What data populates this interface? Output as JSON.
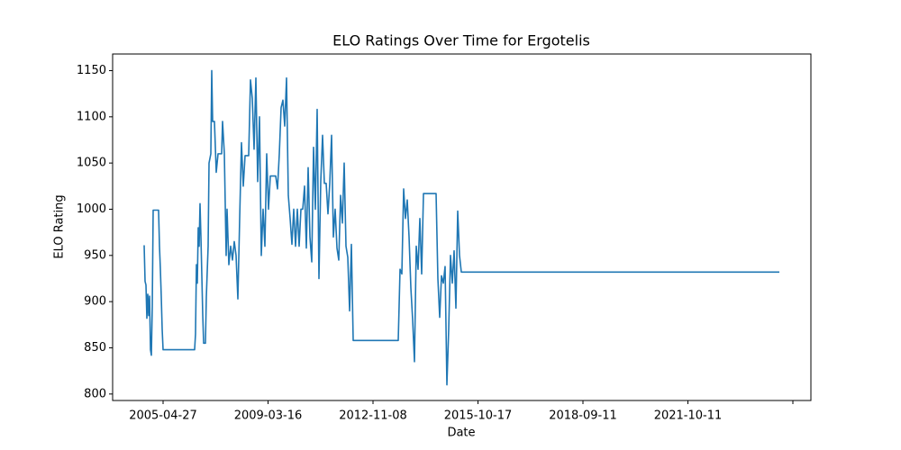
{
  "chart_data": {
    "type": "line",
    "title": "ELO Ratings Over Time for Ergotelis",
    "xlabel": "Date",
    "ylabel": "ELO Rating",
    "xlim": [
      -35,
      740
    ],
    "ylim": [
      793,
      1168
    ],
    "xticks": [
      {
        "value": 21,
        "label": "2005-04-27"
      },
      {
        "value": 137.5,
        "label": "2009-03-16"
      },
      {
        "value": 254,
        "label": "2012-11-08"
      },
      {
        "value": 370.5,
        "label": "2015-10-17"
      },
      {
        "value": 487,
        "label": "2018-09-11"
      },
      {
        "value": 603.5,
        "label": "2021-10-11"
      },
      {
        "value": 720,
        "label": null
      }
    ],
    "yticks": [
      800,
      850,
      900,
      950,
      1000,
      1050,
      1100,
      1150
    ],
    "series": [
      {
        "name": "ELO Rating",
        "color": "#1f77b4",
        "x": [
          0,
          1,
          2,
          3,
          4,
          5,
          6,
          7,
          8,
          9,
          10,
          16,
          17,
          18,
          19,
          20,
          21,
          56,
          57,
          58,
          59,
          60,
          61,
          62,
          63,
          65,
          66,
          68,
          69,
          71,
          72,
          74,
          75,
          76,
          78,
          80,
          82,
          86,
          87,
          89,
          91,
          92,
          94,
          96,
          98,
          100,
          102,
          104,
          106,
          108,
          110,
          112,
          116,
          118,
          120,
          122,
          124,
          126,
          128,
          130,
          132,
          134,
          136,
          138,
          140,
          146,
          148,
          150,
          152,
          154,
          156,
          158,
          160,
          162,
          164,
          166,
          168,
          170,
          172,
          174,
          176,
          178,
          180,
          182,
          184,
          186,
          188,
          190,
          192,
          194,
          196,
          198,
          200,
          202,
          204,
          206,
          208,
          210,
          212,
          214,
          216,
          218,
          220,
          222,
          224,
          226,
          228,
          230,
          232,
          282,
          284,
          286,
          288,
          290,
          292,
          294,
          296,
          298,
          300,
          302,
          304,
          306,
          308,
          310,
          324,
          326,
          328,
          330,
          332,
          334,
          336,
          338,
          340,
          342,
          344,
          346,
          348,
          350,
          352,
          705
        ],
        "values": [
          961,
          922,
          918,
          882,
          908,
          885,
          906,
          848,
          842,
          895,
          999,
          999,
          960,
          935,
          905,
          870,
          848,
          848,
          865,
          940,
          920,
          980,
          960,
          1006,
          970,
          886,
          855,
          855,
          905,
          960,
          1050,
          1060,
          1150,
          1095,
          1095,
          1040,
          1060,
          1060,
          1095,
          1060,
          950,
          1000,
          940,
          960,
          945,
          965,
          950,
          903,
          990,
          1072,
          1025,
          1058,
          1058,
          1140,
          1120,
          1065,
          1142,
          1030,
          1100,
          950,
          1000,
          960,
          1060,
          1000,
          1036,
          1036,
          1022,
          1060,
          1110,
          1118,
          1090,
          1142,
          1015,
          990,
          962,
          1000,
          960,
          1000,
          960,
          1000,
          1000,
          1025,
          958,
          1045,
          970,
          943,
          1067,
          1000,
          1108,
          925,
          1030,
          1080,
          1028,
          1028,
          995,
          1028,
          1080,
          970,
          1000,
          958,
          945,
          1015,
          985,
          1050,
          960,
          948,
          890,
          962,
          858,
          858,
          935,
          930,
          1022,
          990,
          1010,
          970,
          915,
          880,
          835,
          960,
          935,
          990,
          930,
          1017,
          1017,
          925,
          883,
          928,
          920,
          938,
          810,
          870,
          950,
          920,
          955,
          893,
          998,
          950,
          932,
          932
        ]
      }
    ]
  }
}
